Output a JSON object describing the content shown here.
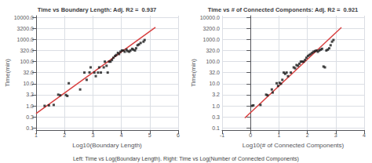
{
  "chart_data": [
    {
      "type": "scatter",
      "title": "Time vs Boundary Length: Adj. R2 =  0.937",
      "xlabel": "Log10(Boundary Length)",
      "ylabel": "Time(min)",
      "log": "y",
      "grid": true,
      "xlim": [
        1,
        6
      ],
      "xticks": [
        1,
        2,
        3,
        4,
        5,
        6
      ],
      "ylim": [
        0.08,
        12000.0
      ],
      "yticks": [
        0.1,
        {
          "value": 0.32,
          "label": "0.3"
        },
        {
          "value": 1.0,
          "label": "1.0"
        },
        3.2,
        {
          "value": 10.0,
          "label": "10.0"
        },
        {
          "value": 32.0,
          "label": "32.0"
        },
        {
          "value": 100.0,
          "label": "100.0"
        },
        {
          "value": 320.0,
          "label": "320.0"
        },
        {
          "value": 1000.0,
          "label": "1000.0"
        },
        {
          "value": 3200.0,
          "label": "3200.0"
        },
        {
          "value": 10000.0,
          "label": "10000.0"
        }
      ],
      "series": [
        {
          "type": "scatter",
          "marker": "square",
          "color": "#1a1a1a",
          "x": [
            1.3,
            1.45,
            1.62,
            1.78,
            1.85,
            2.05,
            2.1,
            2.15,
            2.55,
            2.7,
            2.78,
            2.88,
            2.92,
            3.05,
            3.1,
            3.18,
            3.22,
            3.28,
            3.38,
            3.42,
            3.48,
            3.52,
            3.57,
            3.62,
            3.67,
            3.72,
            3.78,
            3.82,
            3.88,
            3.92,
            3.97,
            4.02,
            4.07,
            4.12,
            4.18,
            4.22,
            4.28,
            4.32,
            4.38,
            4.42,
            4.48,
            4.52,
            4.57,
            4.62,
            4.68,
            4.78,
            4.82
          ],
          "values": [
            1.0,
            1.05,
            1.1,
            3.2,
            3.0,
            3.1,
            2.8,
            10.5,
            5.5,
            32.0,
            15.0,
            32.5,
            55.0,
            32.0,
            22.0,
            32.0,
            55.0,
            32.0,
            55.0,
            100.0,
            65.0,
            32.0,
            100.0,
            100.0,
            120.0,
            150.0,
            180.0,
            200.0,
            250.0,
            220.0,
            280.0,
            320.0,
            320.0,
            280.0,
            350.0,
            300.0,
            280.0,
            320.0,
            380.0,
            350.0,
            320.0,
            400.0,
            550.0,
            600.0,
            700.0,
            800.0,
            950.0
          ]
        },
        {
          "type": "line",
          "line_style": "solid",
          "color": "#d94040",
          "x": [
            1.0,
            5.2
          ],
          "values": [
            0.44668359215096315,
            3548.133892335753
          ]
        }
      ]
    },
    {
      "type": "scatter",
      "title": "Time vs # of Connected Components: Adj. R2 =  0.921",
      "xlabel": "Log10(# of Connected Components)",
      "ylabel": "Time(min)",
      "log": "y",
      "grid": true,
      "xlim": [
        -1,
        4
      ],
      "xticks": [
        -1,
        0,
        1,
        2,
        3,
        4
      ],
      "ylim": [
        0.08,
        12000.0
      ],
      "yticks": [
        0.1,
        {
          "value": 0.32,
          "label": "0.3"
        },
        {
          "value": 1.0,
          "label": "1.0"
        },
        3.2,
        {
          "value": 10.0,
          "label": "10.0"
        },
        {
          "value": 32.0,
          "label": "32.0"
        },
        {
          "value": 100.0,
          "label": "100.0"
        },
        {
          "value": 320.0,
          "label": "320.0"
        },
        {
          "value": 1000.0,
          "label": "1000.0"
        },
        {
          "value": 3200.0,
          "label": "3200.0"
        },
        {
          "value": 10000.0,
          "label": "10000.0"
        }
      ],
      "series": [
        {
          "type": "scatter",
          "marker": "square",
          "color": "#1a1a1a",
          "x": [
            0.05,
            0.1,
            0.35,
            0.55,
            0.6,
            0.75,
            0.78,
            0.92,
            0.97,
            1.02,
            1.07,
            1.12,
            1.17,
            1.22,
            1.27,
            1.32,
            1.42,
            1.52,
            1.57,
            1.62,
            1.67,
            1.72,
            1.77,
            1.82,
            1.87,
            1.92,
            1.97,
            2.02,
            2.07,
            2.12,
            2.17,
            2.22,
            2.27,
            2.32,
            2.37,
            2.42,
            2.47,
            2.52,
            2.57,
            2.62,
            2.67,
            2.72,
            2.77,
            2.82,
            2.87,
            2.92
          ],
          "values": [
            1.0,
            1.05,
            1.1,
            3.2,
            3.0,
            5.5,
            4.0,
            10.5,
            8.0,
            11.0,
            10.0,
            15.0,
            32.0,
            28.0,
            32.0,
            22.0,
            32.0,
            55.0,
            50.0,
            70.0,
            65.0,
            80.0,
            100.0,
            100.0,
            100.0,
            120.0,
            150.0,
            180.0,
            200.0,
            220.0,
            250.0,
            280.0,
            300.0,
            320.0,
            280.0,
            320.0,
            350.0,
            380.0,
            60.0,
            55.0,
            320.0,
            350.0,
            400.0,
            550.0,
            800.0,
            950.0
          ]
        },
        {
          "type": "line",
          "line_style": "solid",
          "color": "#d94040",
          "x": [
            -0.2,
            3.2
          ],
          "values": [
            0.28183829312644537,
            3548.133892335753
          ]
        }
      ]
    }
  ],
  "caption": "Left: Time vs Log(Boundary Length). Right: Time vs Log(Number of Connected Components)"
}
